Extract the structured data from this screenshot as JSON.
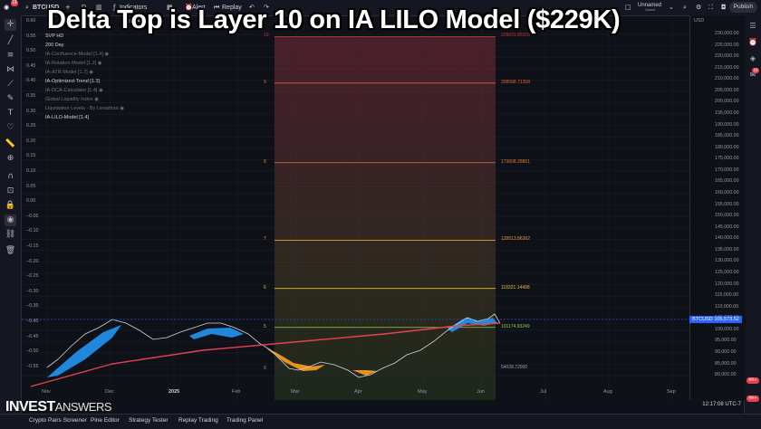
{
  "headline": "Delta Top is Layer 10 on IA LILO Model ($229K)",
  "topbar": {
    "symbol": "BTCUSD",
    "interval": "D",
    "indicators_label": "Indicators",
    "alert_label": "Alert",
    "replay_label": "Replay",
    "layout_name": "Unnamed",
    "layout_sub": "Saved",
    "publish_label": "Publish",
    "currency": "USD"
  },
  "legend": {
    "exchange": "COINBASE",
    "items": [
      "SVP HD",
      "200 Day",
      "IA-Confluence-Model [1.4]",
      "IA-Rotation Model [1.2]",
      "IA-ATR-Model [1.7]",
      "IA-Optimized-Trend [1.3]",
      "IA-DCA-Calculator [1.4]",
      "Global Liquidity Index",
      "Liquidation Levels - By Leviathan",
      "IA-LILO-Model [1.4]"
    ]
  },
  "left_axis_labels": [
    "0.60",
    "0.55",
    "0.50",
    "0.45",
    "0.40",
    "0.35",
    "0.30",
    "0.25",
    "0.20",
    "0.15",
    "0.10",
    "0.05",
    "0.00",
    "−0.05",
    "−0.10",
    "−0.15",
    "−0.20",
    "−0.25",
    "−0.30",
    "−0.35",
    "−0.40",
    "−0.45",
    "−0.50",
    "−0.55"
  ],
  "price_axis_labels": [
    "230,000.00",
    "225,000.00",
    "220,000.00",
    "215,000.00",
    "210,000.00",
    "205,000.00",
    "200,000.00",
    "195,000.00",
    "190,000.00",
    "185,000.00",
    "180,000.00",
    "175,000.00",
    "170,000.00",
    "165,000.00",
    "160,000.00",
    "155,000.00",
    "150,000.00",
    "145,000.00",
    "140,000.00",
    "135,000.00",
    "130,000.00",
    "125,000.00",
    "120,000.00",
    "115,000.00",
    "110,000.00",
    "105,000.00",
    "100,000.00",
    "95,000.00",
    "90,000.00",
    "85,000.00",
    "80,000.00"
  ],
  "price_tag": {
    "symbol": "BTCUSD",
    "value": "105,573.52"
  },
  "time_axis_labels": [
    "Nov",
    "Dec",
    "2025",
    "Feb",
    "Mar",
    "Apr",
    "May",
    "Jun",
    "Jul",
    "Aug",
    "Sep"
  ],
  "lilo_levels": [
    {
      "layer": "10",
      "price": "229031.85315",
      "color": "#c0392b"
    },
    {
      "layer": "9",
      "price": "208598.71358",
      "color": "#e0663a"
    },
    {
      "layer": "8",
      "price": "173608.28861",
      "color": "#e07d2a"
    },
    {
      "layer": "7",
      "price": "139513.86362",
      "color": "#e0a030"
    },
    {
      "layer": "6",
      "price": "118321.14498",
      "color": "#e0c030"
    },
    {
      "layer": "5",
      "price": "101174.93249",
      "color": "#8fd14f"
    },
    {
      "layer": "0",
      "price": "54028.72900",
      "color": "#9aa0a6"
    }
  ],
  "bottom_tabs": [
    "Crypto Pairs Screener",
    "Pine Editor",
    "Strategy Tester",
    "Replay Trading",
    "Trading Panel"
  ],
  "time_info": "12:17:08 UTC-7",
  "watermark": {
    "bold": "INVEST",
    "light": "ANSWERS"
  },
  "badges": {
    "alerts": "19",
    "notifications": "10",
    "right_a": "99+",
    "right_b": "99+"
  },
  "colors": {
    "accent": "#2962ff",
    "ma200": "#e8424f",
    "trend_up": "#2196f3",
    "trend_down": "#ff9f1c"
  }
}
